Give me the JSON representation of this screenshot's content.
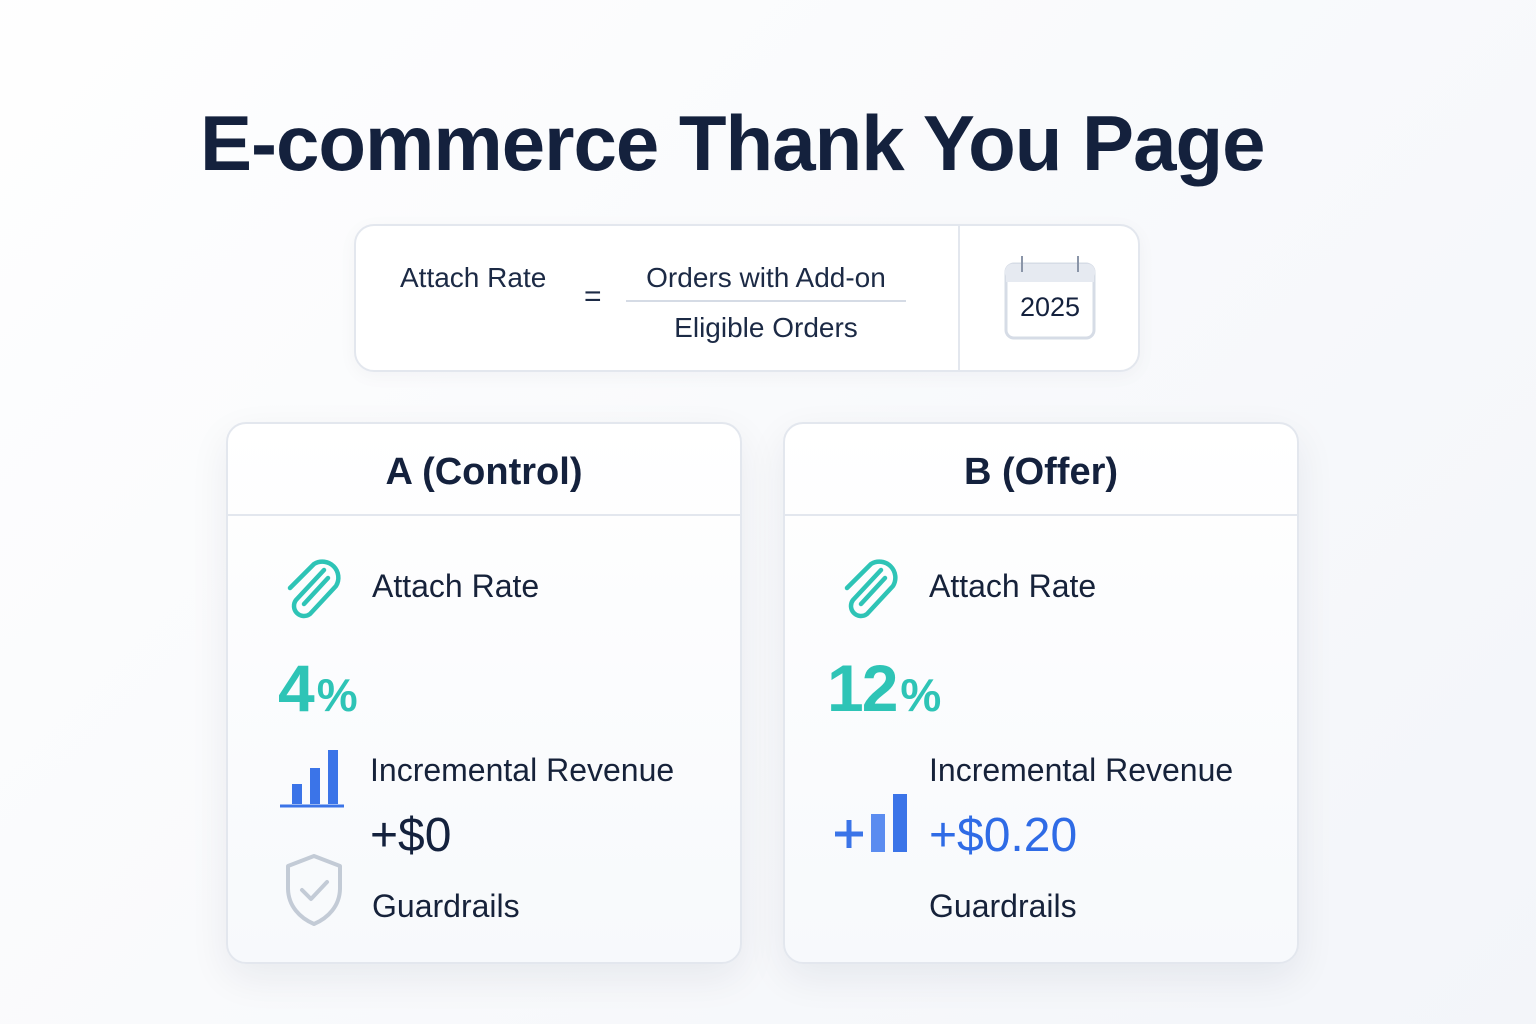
{
  "page": {
    "title": "E-commerce Thank You Page"
  },
  "formula": {
    "lhs": "Attach Rate",
    "equals": "=",
    "numerator": "Orders with Add-on",
    "denominator": "Eligible Orders",
    "year": "2025",
    "year_icon": "calendar-icon"
  },
  "variants": [
    {
      "name": "A (Control)",
      "attach_rate_label": "Attach Rate",
      "attach_rate_value": "4",
      "attach_rate_unit": "%",
      "attach_icon": "paperclip-icon",
      "revenue_label": "Incremental Revenue",
      "revenue_value": "+$0",
      "revenue_icon": "bar-chart-icon",
      "revenue_color": "#14213d",
      "guardrails_label": "Guardrails",
      "guardrails_icon": "shield-check-icon"
    },
    {
      "name": "B (Offer)",
      "attach_rate_label": "Attach Rate",
      "attach_rate_value": "12",
      "attach_rate_unit": "%",
      "attach_icon": "paperclip-icon",
      "revenue_label": "Incremental Revenue",
      "revenue_value": "+$0.20",
      "revenue_icon": "plus-bar-chart-icon",
      "revenue_color": "#2f6be6",
      "guardrails_label": "Guardrails"
    }
  ],
  "colors": {
    "accent_teal": "#2ec4b6",
    "accent_blue": "#3b74e8",
    "text_dark": "#14213d",
    "shield_gray": "#c3cbd6"
  }
}
